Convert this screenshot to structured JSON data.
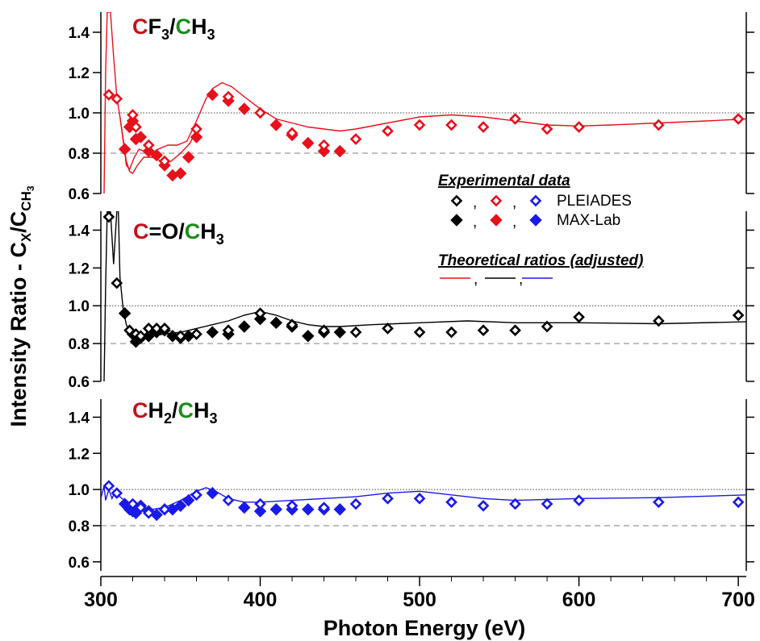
{
  "colors": {
    "ch3_series": "#e8101a",
    "co_series": "#000000",
    "ch2_series": "#1a1ae8",
    "label_red": "#c0141c",
    "label_green": "#1e8c1e"
  },
  "chart_data": {
    "type": "scatter",
    "xlabel": "Photon Energy (eV)",
    "ylabel": "Intensity Ratio - C",
    "ylabel_sub_x": "X",
    "ylabel_mid": "/C",
    "ylabel_sub_ch3": "CH",
    "ylabel_sub_3": "3",
    "xlim": [
      300,
      705
    ],
    "xticks": [
      300,
      400,
      500,
      600,
      700
    ],
    "grid": false,
    "reference_lines": [
      {
        "y": 1.0,
        "style": "dotted"
      },
      {
        "y": 0.8,
        "style": "dashed"
      }
    ],
    "legend": {
      "placement": "center-right",
      "experimental_title": "Experimental data",
      "separator": ",",
      "pleiades_label": "PLEIADES",
      "maxlab_label": "MAX-Lab",
      "theoretical_title": "Theoretical ratios (adjusted)"
    },
    "panels": [
      {
        "id": "cf3",
        "label_c1": "C",
        "label_mid": "F",
        "label_sub1": "3",
        "label_slash": "/",
        "label_c2": "C",
        "label_tail": "H",
        "label_sub2": "3",
        "ylim": [
          0.6,
          1.5
        ],
        "yticks": [
          0.6,
          0.8,
          1.0,
          1.2,
          1.4
        ],
        "color": "#e8101a",
        "pleiades": [
          [
            305,
            1.09
          ],
          [
            310,
            1.07
          ],
          [
            320,
            0.99
          ],
          [
            322,
            0.93
          ],
          [
            330,
            0.84
          ],
          [
            340,
            0.76
          ],
          [
            360,
            0.92
          ],
          [
            380,
            1.08
          ],
          [
            400,
            1.0
          ],
          [
            420,
            0.9
          ],
          [
            440,
            0.84
          ],
          [
            460,
            0.87
          ],
          [
            480,
            0.91
          ],
          [
            500,
            0.94
          ],
          [
            520,
            0.94
          ],
          [
            540,
            0.93
          ],
          [
            560,
            0.97
          ],
          [
            580,
            0.92
          ],
          [
            600,
            0.93
          ],
          [
            650,
            0.94
          ],
          [
            700,
            0.97
          ]
        ],
        "maxlab": [
          [
            315,
            0.82
          ],
          [
            318,
            0.93
          ],
          [
            320,
            0.96
          ],
          [
            322,
            0.87
          ],
          [
            325,
            0.88
          ],
          [
            330,
            0.81
          ],
          [
            335,
            0.79
          ],
          [
            340,
            0.74
          ],
          [
            345,
            0.69
          ],
          [
            350,
            0.7
          ],
          [
            355,
            0.78
          ],
          [
            360,
            0.88
          ],
          [
            370,
            1.09
          ],
          [
            380,
            1.06
          ],
          [
            390,
            1.02
          ],
          [
            410,
            0.94
          ],
          [
            420,
            0.89
          ],
          [
            430,
            0.85
          ],
          [
            440,
            0.81
          ],
          [
            450,
            0.81
          ]
        ],
        "theory": [
          [
            302,
            0.6
          ],
          [
            303,
            1.2
          ],
          [
            304,
            1.5
          ],
          [
            306,
            1.5
          ],
          [
            308,
            1.28
          ],
          [
            310,
            1.08
          ],
          [
            312,
            0.98
          ],
          [
            314,
            0.87
          ],
          [
            316,
            0.74
          ],
          [
            318,
            0.72
          ],
          [
            321,
            0.78
          ],
          [
            324,
            0.82
          ],
          [
            327,
            0.81
          ],
          [
            330,
            0.79
          ],
          [
            336,
            0.82
          ],
          [
            342,
            0.84
          ],
          [
            348,
            0.84
          ],
          [
            354,
            0.86
          ],
          [
            360,
            0.96
          ],
          [
            366,
            1.07
          ],
          [
            370,
            1.12
          ],
          [
            376,
            1.15
          ],
          [
            382,
            1.13
          ],
          [
            390,
            1.08
          ],
          [
            400,
            1.02
          ],
          [
            410,
            0.97
          ],
          [
            420,
            0.95
          ],
          [
            430,
            0.93
          ],
          [
            440,
            0.92
          ],
          [
            450,
            0.91
          ],
          [
            460,
            0.92
          ],
          [
            480,
            0.95
          ],
          [
            500,
            0.98
          ],
          [
            520,
            0.99
          ],
          [
            540,
            0.98
          ],
          [
            560,
            0.96
          ],
          [
            580,
            0.94
          ],
          [
            600,
            0.935
          ],
          [
            620,
            0.94
          ],
          [
            650,
            0.95
          ],
          [
            680,
            0.96
          ],
          [
            705,
            0.97
          ]
        ],
        "theory_b": [
          [
            312,
            0.98
          ],
          [
            314,
            0.86
          ],
          [
            316,
            0.76
          ],
          [
            318,
            0.71
          ],
          [
            320,
            0.7
          ],
          [
            323,
            0.74
          ],
          [
            327,
            0.78
          ],
          [
            332,
            0.78
          ],
          [
            338,
            0.76
          ],
          [
            344,
            0.76
          ],
          [
            350,
            0.8
          ],
          [
            356,
            0.85
          ],
          [
            360,
            0.92
          ]
        ]
      },
      {
        "id": "co",
        "label_c1": "C",
        "label_mid": "=O",
        "label_sub1": "",
        "label_slash": "/",
        "label_c2": "C",
        "label_tail": "H",
        "label_sub2": "3",
        "ylim": [
          0.6,
          1.5
        ],
        "yticks": [
          0.6,
          0.8,
          1.0,
          1.2,
          1.4
        ],
        "color": "#000000",
        "pleiades": [
          [
            305,
            1.47
          ],
          [
            310,
            1.12
          ],
          [
            318,
            0.87
          ],
          [
            322,
            0.85
          ],
          [
            325,
            0.84
          ],
          [
            330,
            0.88
          ],
          [
            335,
            0.88
          ],
          [
            340,
            0.88
          ],
          [
            350,
            0.84
          ],
          [
            360,
            0.85
          ],
          [
            380,
            0.87
          ],
          [
            400,
            0.96
          ],
          [
            420,
            0.9
          ],
          [
            440,
            0.87
          ],
          [
            460,
            0.86
          ],
          [
            480,
            0.88
          ],
          [
            500,
            0.86
          ],
          [
            520,
            0.86
          ],
          [
            540,
            0.87
          ],
          [
            560,
            0.87
          ],
          [
            580,
            0.89
          ],
          [
            600,
            0.94
          ],
          [
            650,
            0.92
          ],
          [
            700,
            0.95
          ]
        ],
        "maxlab": [
          [
            315,
            0.96
          ],
          [
            320,
            0.85
          ],
          [
            322,
            0.81
          ],
          [
            325,
            0.83
          ],
          [
            330,
            0.84
          ],
          [
            335,
            0.86
          ],
          [
            340,
            0.87
          ],
          [
            345,
            0.84
          ],
          [
            350,
            0.83
          ],
          [
            355,
            0.84
          ],
          [
            370,
            0.86
          ],
          [
            380,
            0.85
          ],
          [
            390,
            0.89
          ],
          [
            400,
            0.93
          ],
          [
            410,
            0.91
          ],
          [
            420,
            0.89
          ],
          [
            430,
            0.84
          ],
          [
            440,
            0.86
          ],
          [
            450,
            0.86
          ]
        ],
        "theory": [
          [
            302,
            0.6
          ],
          [
            303,
            1.1
          ],
          [
            304,
            1.5
          ],
          [
            306,
            1.5
          ],
          [
            308,
            1.22
          ],
          [
            310,
            1.5
          ],
          [
            311,
            1.5
          ],
          [
            312,
            1.15
          ],
          [
            314,
            0.98
          ],
          [
            316,
            0.9
          ],
          [
            318,
            0.86
          ],
          [
            320,
            0.84
          ],
          [
            324,
            0.83
          ],
          [
            330,
            0.84
          ],
          [
            340,
            0.85
          ],
          [
            350,
            0.86
          ],
          [
            360,
            0.88
          ],
          [
            370,
            0.9
          ],
          [
            380,
            0.92
          ],
          [
            390,
            0.95
          ],
          [
            400,
            0.97
          ],
          [
            410,
            0.95
          ],
          [
            420,
            0.92
          ],
          [
            430,
            0.9
          ],
          [
            440,
            0.89
          ],
          [
            450,
            0.89
          ],
          [
            470,
            0.9
          ],
          [
            500,
            0.91
          ],
          [
            530,
            0.92
          ],
          [
            560,
            0.91
          ],
          [
            600,
            0.91
          ],
          [
            650,
            0.905
          ],
          [
            705,
            0.915
          ]
        ]
      },
      {
        "id": "ch2",
        "label_c1": "C",
        "label_mid": "H",
        "label_sub1": "2",
        "label_slash": "/",
        "label_c2": "C",
        "label_tail": "H",
        "label_sub2": "3",
        "ylim": [
          0.55,
          1.5
        ],
        "yticks": [
          0.6,
          0.8,
          1.0,
          1.2,
          1.4
        ],
        "color": "#1a1ae8",
        "pleiades": [
          [
            305,
            1.02
          ],
          [
            310,
            0.98
          ],
          [
            320,
            0.92
          ],
          [
            325,
            0.9
          ],
          [
            330,
            0.87
          ],
          [
            340,
            0.89
          ],
          [
            360,
            0.97
          ],
          [
            380,
            0.94
          ],
          [
            400,
            0.92
          ],
          [
            420,
            0.91
          ],
          [
            440,
            0.9
          ],
          [
            460,
            0.92
          ],
          [
            480,
            0.95
          ],
          [
            500,
            0.95
          ],
          [
            520,
            0.93
          ],
          [
            540,
            0.91
          ],
          [
            560,
            0.92
          ],
          [
            580,
            0.92
          ],
          [
            600,
            0.94
          ],
          [
            650,
            0.93
          ],
          [
            700,
            0.93
          ]
        ],
        "maxlab": [
          [
            315,
            0.92
          ],
          [
            318,
            0.89
          ],
          [
            320,
            0.88
          ],
          [
            322,
            0.87
          ],
          [
            325,
            0.91
          ],
          [
            330,
            0.88
          ],
          [
            335,
            0.86
          ],
          [
            340,
            0.89
          ],
          [
            345,
            0.89
          ],
          [
            350,
            0.91
          ],
          [
            355,
            0.94
          ],
          [
            370,
            0.98
          ],
          [
            390,
            0.9
          ],
          [
            400,
            0.88
          ],
          [
            410,
            0.89
          ],
          [
            420,
            0.89
          ],
          [
            430,
            0.89
          ],
          [
            440,
            0.89
          ],
          [
            450,
            0.89
          ]
        ],
        "theory": [
          [
            300,
            0.95
          ],
          [
            302,
            1.02
          ],
          [
            303,
            0.94
          ],
          [
            305,
            1.0
          ],
          [
            307,
            0.95
          ],
          [
            309,
            0.99
          ],
          [
            312,
            0.96
          ],
          [
            316,
            0.93
          ],
          [
            320,
            0.91
          ],
          [
            326,
            0.9
          ],
          [
            332,
            0.89
          ],
          [
            340,
            0.9
          ],
          [
            350,
            0.94
          ],
          [
            360,
            0.99
          ],
          [
            366,
            1.01
          ],
          [
            372,
            0.99
          ],
          [
            380,
            0.95
          ],
          [
            390,
            0.93
          ],
          [
            400,
            0.93
          ],
          [
            420,
            0.94
          ],
          [
            440,
            0.95
          ],
          [
            460,
            0.96
          ],
          [
            480,
            0.98
          ],
          [
            500,
            0.99
          ],
          [
            520,
            0.97
          ],
          [
            540,
            0.95
          ],
          [
            560,
            0.94
          ],
          [
            580,
            0.945
          ],
          [
            600,
            0.95
          ],
          [
            650,
            0.955
          ],
          [
            705,
            0.97
          ]
        ]
      }
    ]
  }
}
